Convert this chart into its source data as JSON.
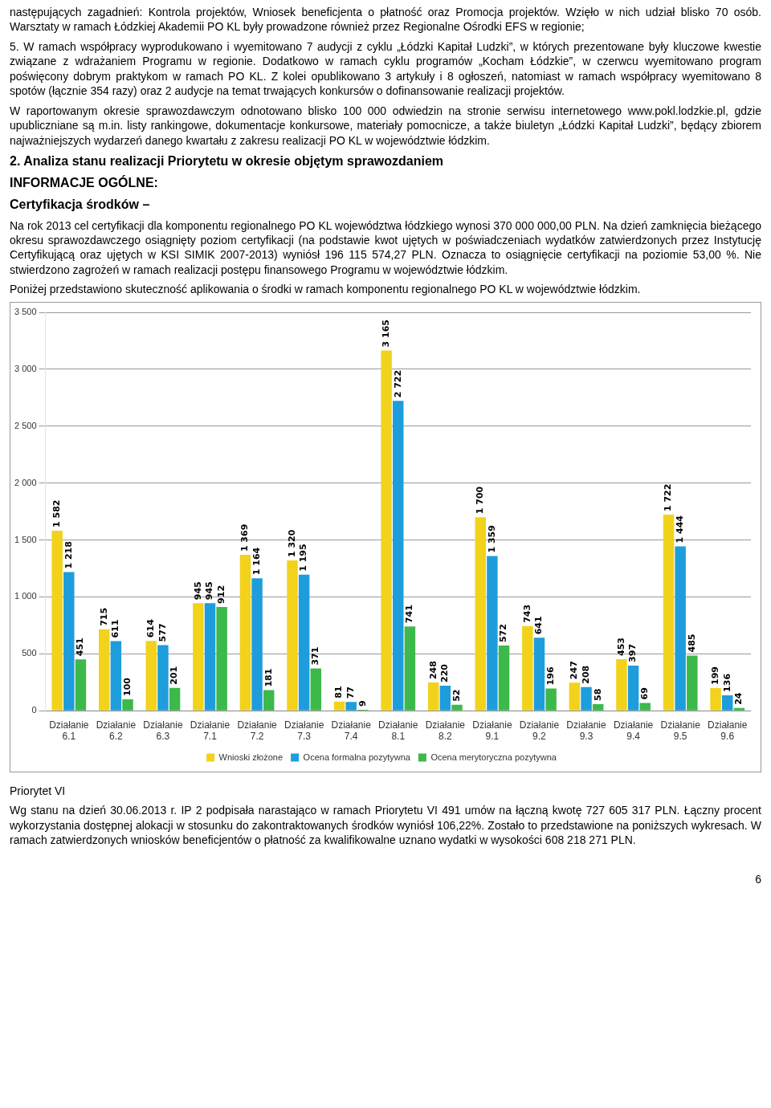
{
  "chart_data": {
    "type": "bar",
    "title": "Poniżej przedstawiono skuteczność aplikowania o środki w ramach komponentu regionalnego PO KL w województwie łódzkim.",
    "categories": [
      "Działanie 6.1",
      "Działanie 6.2",
      "Działanie 6.3",
      "Działanie 7.1",
      "Działanie 7.2",
      "Działanie 7.3",
      "Działanie 7.4",
      "Działanie 8.1",
      "Działanie 8.2",
      "Działanie 9.1",
      "Działanie 9.2",
      "Działanie 9.3",
      "Działanie 9.4",
      "Działanie 9.5",
      "Działanie 9.6"
    ],
    "series": [
      {
        "name": "Wnioski złożone",
        "color": "#f2d21b",
        "values": [
          1582,
          715,
          614,
          945,
          1369,
          1320,
          81,
          3165,
          248,
          1700,
          743,
          247,
          453,
          1722,
          199
        ],
        "value_labels": [
          "1 582",
          "715",
          "614",
          "945",
          "1 369",
          "1 320",
          "81",
          "3 165",
          "248",
          "1 700",
          "743",
          "247",
          "453",
          "1 722",
          "199"
        ]
      },
      {
        "name": "Ocena formalna pozytywna",
        "color": "#1e9ddc",
        "values": [
          1218,
          611,
          577,
          945,
          1164,
          1195,
          77,
          2722,
          220,
          1359,
          641,
          208,
          397,
          1444,
          136
        ],
        "value_labels": [
          "1 218",
          "611",
          "577",
          "945",
          "1 164",
          "1 195",
          "77",
          "2 722",
          "220",
          "1 359",
          "641",
          "208",
          "397",
          "1 444",
          "136"
        ]
      },
      {
        "name": "Ocena merytoryczna pozytywna",
        "color": "#3cb94a",
        "values": [
          451,
          100,
          201,
          912,
          181,
          371,
          9,
          741,
          52,
          572,
          196,
          58,
          69,
          485,
          24
        ],
        "value_labels": [
          "451",
          "100",
          "201",
          "912",
          "181",
          "371",
          "9",
          "741",
          "52",
          "572",
          "196",
          "58",
          "69",
          "485",
          "24"
        ]
      }
    ],
    "ylim": [
      0,
      3500
    ],
    "yticks": [
      0,
      {
        "value": 500,
        "label": "500"
      },
      {
        "value": 1000,
        "label": "1 000"
      },
      {
        "value": 1500,
        "label": "1 500"
      },
      {
        "value": 2000,
        "label": "2 000"
      },
      {
        "value": 2500,
        "label": "2 500"
      },
      {
        "value": 3000,
        "label": "3 000"
      },
      {
        "value": 3500,
        "label": "3 500"
      }
    ],
    "grid": "y",
    "legend": "bottom",
    "annotations": [
      "następujących zagadnień: Kontrola projektów, Wniosek beneficjenta o płatność oraz Promocja projektów. Wzięło w nich udział blisko 70 osób. Warsztaty w ramach Łódzkiej Akademii PO KL były prowadzone również przez Regionalne Ośrodki EFS w regionie;",
      "5. W ramach współpracy wyprodukowano i wyemitowano 7 audycji z cyklu „Łódzki Kapitał Ludzki”, w których prezentowane były kluczowe kwestie związane z wdrażaniem Programu w regionie. Dodatkowo w ramach cyklu programów „Kocham Łódzkie”, w czerwcu wyemitowano program poświęcony dobrym praktykom w ramach PO KL. Z kolei opublikowano 3 artykuły i 8 ogłoszeń, natomiast w ramach współpracy wyemitowano 8 spotów (łącznie 354 razy) oraz 2 audycje na temat trwających konkursów o dofinansowanie realizacji projektów.",
      "W raportowanym okresie sprawozdawczym odnotowano blisko 100 000 odwiedzin na stronie serwisu internetowego www.pokl.lodzkie.pl, gdzie upubliczniane są m.in. listy rankingowe, dokumentacje konkursowe, materiały pomocnicze, a także biuletyn „Łódzki Kapitał Ludzki”, będący zbiorem najważniejszych wydarzeń danego kwartału z zakresu realizacji PO KL w województwie łódzkim.",
      "2. Analiza stanu realizacji Priorytetu w okresie objętym sprawozdaniem",
      "INFORMACJE OGÓLNE:",
      "Certyfikacja środków –",
      "Na rok 2013 cel certyfikacji dla komponentu regionalnego PO KL województwa łódzkiego wynosi 370 000 000,00 PLN. Na dzień zamknięcia bieżącego okresu sprawozdawczego osiągnięty poziom certyfikacji (na podstawie kwot ujętych w poświadczeniach wydatków zatwierdzonych przez Instytucję Certyfikującą oraz ujętych w KSI SIMIK 2007-2013) wyniósł 196 115 574,27 PLN. Oznacza to osiągnięcie certyfikacji na poziomie 53,00 %. Nie stwierdzono zagrożeń w ramach realizacji postępu finansowego Programu w województwie łódzkim.",
      "Priorytet VI",
      "Wg stanu na dzień 30.06.2013 r. IP 2 podpisała narastająco w ramach Priorytetu VI 491 umów na łączną kwotę 727 605 317 PLN. Łączny procent wykorzystania dostępnej alokacji w stosunku do zakontraktowanych środków wyniósł 106,22%. Zostało to przedstawione na poniższych wykresach. W ramach zatwierdzonych wniosków beneficjentów o płatność za kwalifikowalne uznano wydatki w wysokości 608 218 271 PLN.",
      "6"
    ]
  }
}
